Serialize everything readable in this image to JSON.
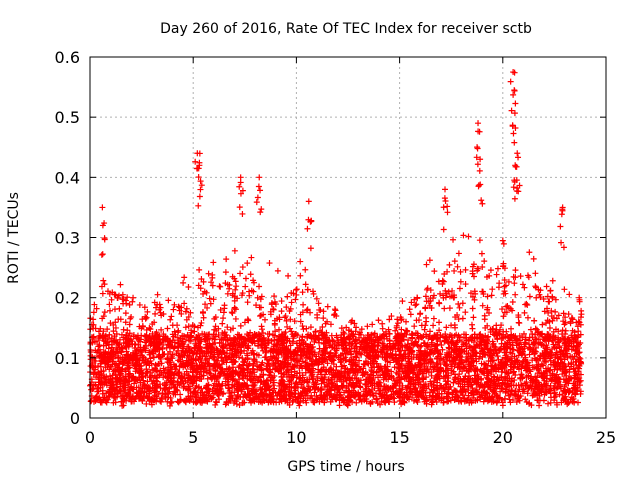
{
  "chart_data": {
    "type": "scatter",
    "title": "Day 260 of 2016, Rate Of TEC Index for receiver sctb",
    "xlabel": "GPS time / hours",
    "ylabel": "ROTI / TECUs",
    "xlim": [
      0,
      25
    ],
    "ylim": [
      0,
      0.6
    ],
    "x_ticks": [
      0,
      5,
      10,
      15,
      20,
      25
    ],
    "x_tick_labels": [
      "0",
      "5",
      "10",
      "15",
      "20",
      "25"
    ],
    "y_ticks": [
      0,
      0.1,
      0.2,
      0.3,
      0.4,
      0.5,
      0.6
    ],
    "y_tick_labels": [
      "0",
      "0.1",
      "0.2",
      "0.3",
      "0.4",
      "0.5",
      "0.6"
    ],
    "grid": true,
    "marker": "+",
    "series": [
      {
        "name": "ROTI",
        "color": "#ff0000",
        "x_range_hours": [
          0,
          23.8
        ],
        "typical_roti": [
          0.02,
          0.15
        ],
        "notable_points": [
          {
            "x": 0.6,
            "y": 0.35
          },
          {
            "x": 5.2,
            "y": 0.44
          },
          {
            "x": 5.3,
            "y": 0.42
          },
          {
            "x": 7.3,
            "y": 0.4
          },
          {
            "x": 8.2,
            "y": 0.4
          },
          {
            "x": 10.6,
            "y": 0.36
          },
          {
            "x": 17.2,
            "y": 0.38
          },
          {
            "x": 18.8,
            "y": 0.49
          },
          {
            "x": 18.9,
            "y": 0.43
          },
          {
            "x": 20.5,
            "y": 0.575
          },
          {
            "x": 20.5,
            "y": 0.537
          },
          {
            "x": 20.7,
            "y": 0.44
          },
          {
            "x": 20.6,
            "y": 0.42
          },
          {
            "x": 22.9,
            "y": 0.35
          },
          {
            "x": 23.7,
            "y": 0.2
          }
        ]
      }
    ]
  }
}
